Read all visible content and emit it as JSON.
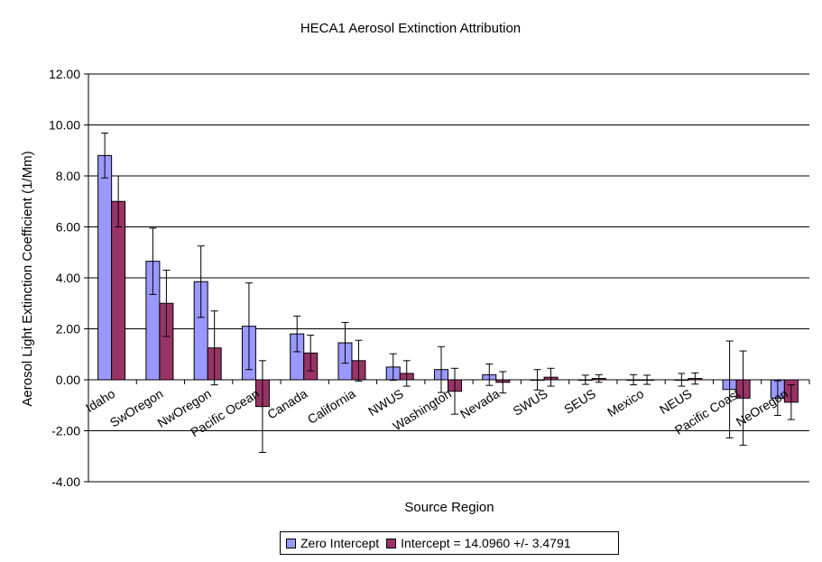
{
  "chart_data": {
    "type": "bar",
    "title": "HECA1 Aerosol Extinction Attribution",
    "xlabel": "Source Region",
    "ylabel": "Aerosol Light Extinction Coefficient (1/Mm)",
    "ylim": [
      -4,
      12
    ],
    "yticks": [
      "12.00",
      "10.00",
      "8.00",
      "6.00",
      "4.00",
      "2.00",
      "0.00",
      "-2.00",
      "-4.00"
    ],
    "grid": true,
    "legend_position": "bottom",
    "categories": [
      "Idaho",
      "SwOregon",
      "NwOregon",
      "Pacific Ocean",
      "Canada",
      "California",
      "NWUS",
      "Washington",
      "Nevada",
      "SWUS",
      "SEUS",
      "Mexico",
      "NEUS",
      "Pacific Coast",
      "NeOregon"
    ],
    "series": [
      {
        "name": "Zero Intercept",
        "color": "#9999ff",
        "values": [
          8.8,
          4.65,
          3.85,
          2.1,
          1.8,
          1.45,
          0.5,
          0.4,
          0.2,
          0.0,
          0.0,
          0.0,
          0.0,
          -0.38,
          -0.72
        ],
        "error": [
          0.88,
          1.3,
          1.4,
          1.7,
          0.7,
          0.8,
          0.52,
          0.9,
          0.42,
          0.4,
          0.18,
          0.2,
          0.25,
          1.9,
          0.68
        ]
      },
      {
        "name": "Intercept = 14.0960 +/- 3.4791",
        "color": "#993366",
        "values": [
          7.0,
          3.0,
          1.25,
          -1.05,
          1.05,
          0.75,
          0.25,
          -0.45,
          -0.1,
          0.1,
          0.05,
          0.0,
          0.05,
          -0.72,
          -0.88
        ],
        "error": [
          1.0,
          1.3,
          1.45,
          1.8,
          0.7,
          0.8,
          0.5,
          0.9,
          0.42,
          0.35,
          0.15,
          0.18,
          0.22,
          1.85,
          0.68
        ]
      }
    ]
  }
}
